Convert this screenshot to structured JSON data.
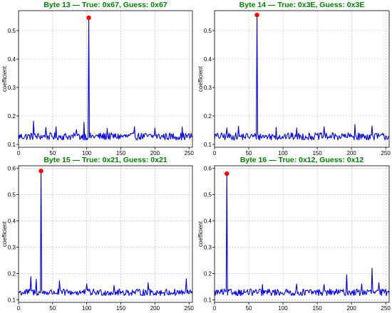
{
  "style": {
    "title_color": "#008000",
    "line_color": "#0000ee",
    "peak_color": "#ff0000",
    "grid_color": "#b0b0b0"
  },
  "chart_data": [
    {
      "type": "line",
      "title": "Byte 13 — True: 0x67, Guess: 0x67",
      "xlabel": "",
      "ylabel": "coefficient",
      "xlim": [
        0,
        255
      ],
      "ylim": [
        0.09,
        0.57
      ],
      "xticks": [
        0,
        50,
        100,
        150,
        200,
        250
      ],
      "yticks": [
        0.1,
        0.2,
        0.3,
        0.4,
        0.5
      ],
      "ytick_labels": [
        "0.1",
        "0.2",
        "0.3",
        "0.4",
        "0.5"
      ],
      "grid": true,
      "peak": {
        "x": 103,
        "y": 0.545
      },
      "baseline": 0.128,
      "noise_amplitude": 0.013,
      "spikes": [
        [
          22,
          0.182
        ],
        [
          40,
          0.16
        ],
        [
          55,
          0.162
        ],
        [
          85,
          0.152
        ],
        [
          96,
          0.178
        ],
        [
          130,
          0.156
        ],
        [
          170,
          0.162
        ],
        [
          200,
          0.158
        ],
        [
          240,
          0.161
        ]
      ]
    },
    {
      "type": "line",
      "title": "Byte 14 — True: 0x3E, Guess: 0x3E",
      "xlabel": "",
      "ylabel": "coefficient",
      "xlim": [
        0,
        255
      ],
      "ylim": [
        0.09,
        0.57
      ],
      "xticks": [
        0,
        50,
        100,
        150,
        200,
        250
      ],
      "yticks": [
        0.1,
        0.2,
        0.3,
        0.4,
        0.5
      ],
      "ytick_labels": [
        "0.1",
        "0.2",
        "0.3",
        "0.4",
        "0.5"
      ],
      "grid": true,
      "peak": {
        "x": 62,
        "y": 0.555
      },
      "baseline": 0.128,
      "noise_amplitude": 0.013,
      "spikes": [
        [
          18,
          0.158
        ],
        [
          35,
          0.164
        ],
        [
          90,
          0.16
        ],
        [
          120,
          0.158
        ],
        [
          160,
          0.162
        ],
        [
          205,
          0.17
        ],
        [
          230,
          0.165
        ]
      ]
    },
    {
      "type": "line",
      "title": "Byte 15 — True: 0x21, Guess: 0x21",
      "xlabel": "",
      "ylabel": "coefficient",
      "xlim": [
        0,
        255
      ],
      "ylim": [
        0.09,
        0.61
      ],
      "xticks": [
        0,
        50,
        100,
        150,
        200,
        250
      ],
      "yticks": [
        0.1,
        0.2,
        0.3,
        0.4,
        0.5,
        0.6
      ],
      "ytick_labels": [
        "0.1",
        "0.2",
        "0.3",
        "0.4",
        "0.5",
        "0.6"
      ],
      "grid": true,
      "peak": {
        "x": 33,
        "y": 0.59
      },
      "baseline": 0.128,
      "noise_amplitude": 0.013,
      "spikes": [
        [
          18,
          0.188
        ],
        [
          26,
          0.178
        ],
        [
          60,
          0.172
        ],
        [
          100,
          0.16
        ],
        [
          140,
          0.155
        ],
        [
          190,
          0.165
        ],
        [
          246,
          0.18
        ]
      ]
    },
    {
      "type": "line",
      "title": "Byte 16 — True: 0x12, Guess: 0x12",
      "xlabel": "",
      "ylabel": "coefficient",
      "xlim": [
        0,
        255
      ],
      "ylim": [
        0.09,
        0.61
      ],
      "xticks": [
        0,
        50,
        100,
        150,
        200,
        250
      ],
      "yticks": [
        0.1,
        0.2,
        0.3,
        0.4,
        0.5,
        0.6
      ],
      "ytick_labels": [
        "0.1",
        "0.2",
        "0.3",
        "0.4",
        "0.5",
        "0.6"
      ],
      "grid": true,
      "peak": {
        "x": 18,
        "y": 0.58
      },
      "baseline": 0.128,
      "noise_amplitude": 0.013,
      "spikes": [
        [
          70,
          0.158
        ],
        [
          120,
          0.16
        ],
        [
          160,
          0.158
        ],
        [
          193,
          0.195
        ],
        [
          215,
          0.16
        ],
        [
          230,
          0.22
        ],
        [
          240,
          0.165
        ]
      ]
    }
  ]
}
